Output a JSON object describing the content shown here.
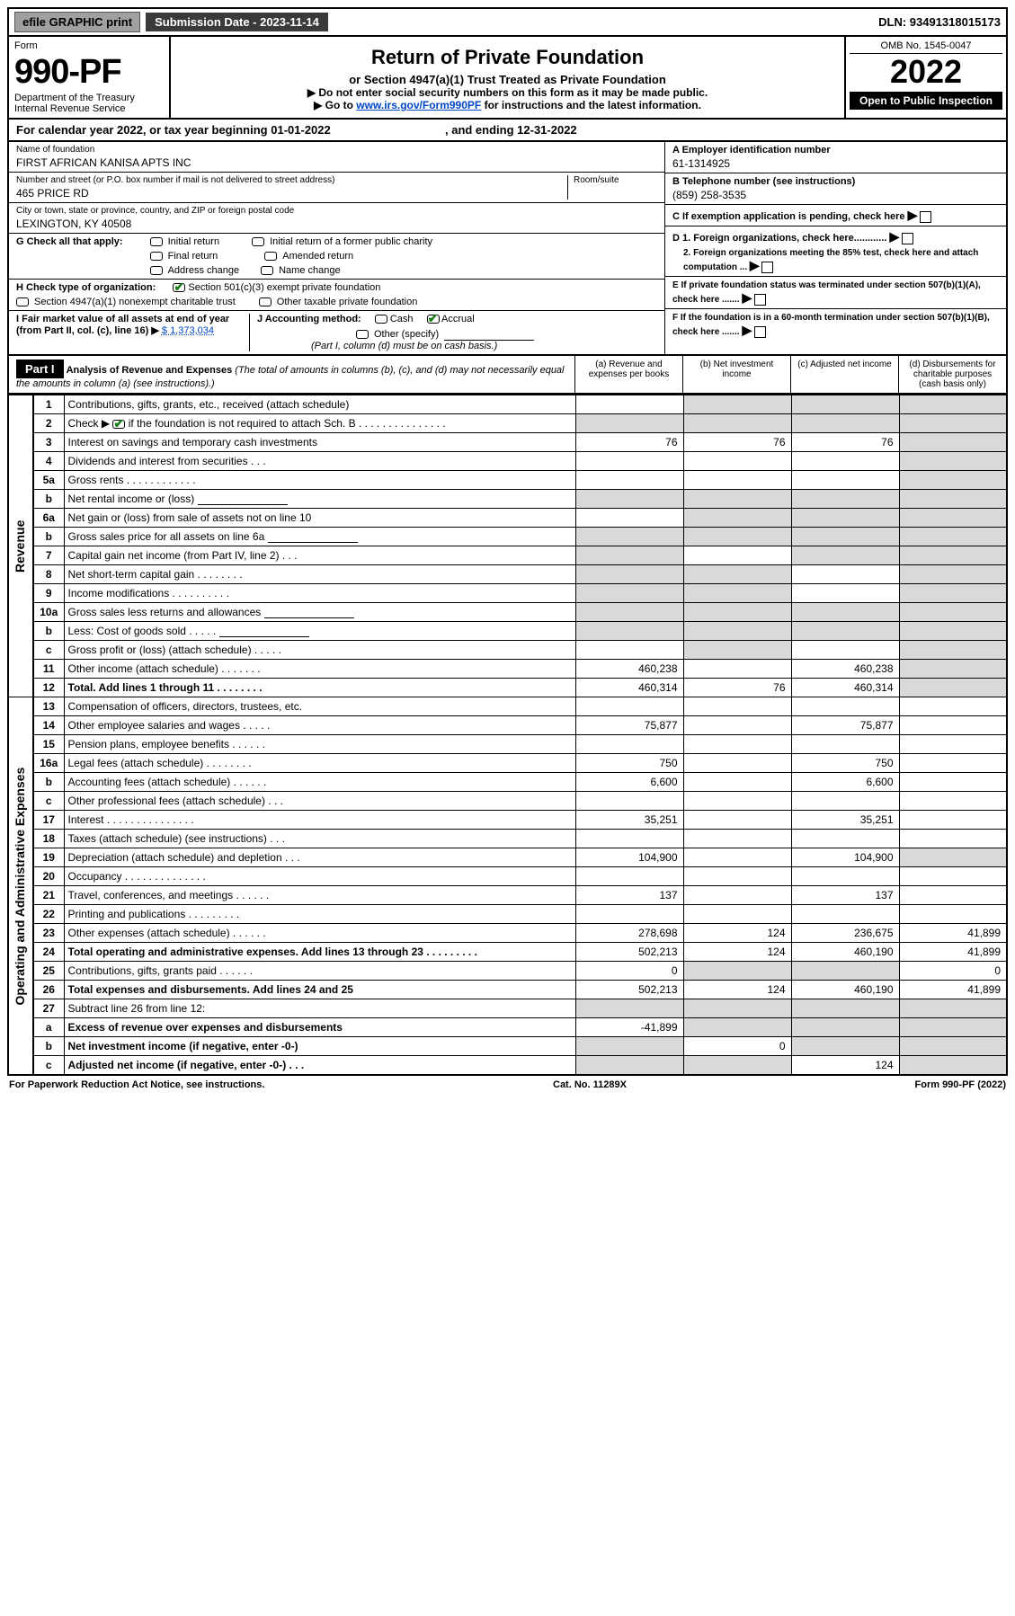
{
  "topbar": {
    "efile": "efile GRAPHIC print",
    "sub_label": "Submission Date - 2023-11-14",
    "dln": "DLN: 93491318015173"
  },
  "header": {
    "form_label": "Form",
    "form_no": "990-PF",
    "dept": "Department of the Treasury",
    "irs": "Internal Revenue Service",
    "title": "Return of Private Foundation",
    "subtitle1": "or Section 4947(a)(1) Trust Treated as Private Foundation",
    "subtitle2a": "▶ Do not enter social security numbers on this form as it may be made public.",
    "subtitle2b_pre": "▶ Go to ",
    "subtitle2b_link": "www.irs.gov/Form990PF",
    "subtitle2b_post": " for instructions and the latest information.",
    "omb": "OMB No. 1545-0047",
    "year": "2022",
    "open": "Open to Public Inspection"
  },
  "calendar": {
    "text_a": "For calendar year 2022, or tax year beginning ",
    "begin": "01-01-2022",
    "text_b": " , and ending ",
    "end": "12-31-2022"
  },
  "info": {
    "name_lbl": "Name of foundation",
    "name": "FIRST AFRICAN KANISA APTS INC",
    "addr_lbl": "Number and street (or P.O. box number if mail is not delivered to street address)",
    "addr": "465 PRICE RD",
    "room_lbl": "Room/suite",
    "city_lbl": "City or town, state or province, country, and ZIP or foreign postal code",
    "city": "LEXINGTON, KY  40508",
    "a_lbl": "A Employer identification number",
    "ein": "61-1314925",
    "b_lbl": "B Telephone number (see instructions)",
    "phone": "(859) 258-3535",
    "c_lbl": "C If exemption application is pending, check here",
    "g_lbl": "G Check all that apply:",
    "g1": "Initial return",
    "g2": "Initial return of a former public charity",
    "g3": "Final return",
    "g4": "Amended return",
    "g5": "Address change",
    "g6": "Name change",
    "d1_lbl": "D 1. Foreign organizations, check here............",
    "d2_lbl": "2. Foreign organizations meeting the 85% test, check here and attach computation ...",
    "h_lbl": "H Check type of organization:",
    "h1": "Section 501(c)(3) exempt private foundation",
    "h2": "Section 4947(a)(1) nonexempt charitable trust",
    "h3": "Other taxable private foundation",
    "e_lbl": "E  If private foundation status was terminated under section 507(b)(1)(A), check here .......",
    "i_lbl": "I Fair market value of all assets at end of year (from Part II, col. (c), line 16) ▶",
    "i_val": "$  1,373,034",
    "j_lbl": "J Accounting method:",
    "j1": "Cash",
    "j2": "Accrual",
    "j3": "Other (specify)",
    "j_note": "(Part I, column (d) must be on cash basis.)",
    "f_lbl": "F  If the foundation is in a 60-month termination under section 507(b)(1)(B), check here ......."
  },
  "part1": {
    "label": "Part I",
    "title": "Analysis of Revenue and Expenses",
    "title_note": " (The total of amounts in columns (b), (c), and (d) may not necessarily equal the amounts in column (a) (see instructions).)",
    "col_a": "(a)  Revenue and expenses per books",
    "col_b": "(b)  Net investment income",
    "col_c": "(c)  Adjusted net income",
    "col_d": "(d)  Disbursements for charitable purposes (cash basis only)"
  },
  "sides": {
    "rev": "Revenue",
    "exp": "Operating and Administrative Expenses"
  },
  "rows": [
    {
      "n": "1",
      "t": "Contributions, gifts, grants, etc., received (attach schedule)",
      "a": "",
      "b": "s",
      "c": "s",
      "d": "s"
    },
    {
      "n": "2",
      "t": "Check ▶ ☑ if the foundation is not required to attach Sch. B  .  .  .  .  .  .  .  .  .  .  .  .  .  .  .",
      "a": "s",
      "b": "s",
      "c": "s",
      "d": "s"
    },
    {
      "n": "3",
      "t": "Interest on savings and temporary cash investments",
      "a": "76",
      "b": "76",
      "c": "76",
      "d": "s"
    },
    {
      "n": "4",
      "t": "Dividends and interest from securities  .  .  .",
      "a": "",
      "b": "",
      "c": "",
      "d": "s"
    },
    {
      "n": "5a",
      "t": "Gross rents  .  .  .  .  .  .  .  .  .  .  .  .",
      "a": "",
      "b": "",
      "c": "",
      "d": "s"
    },
    {
      "n": "b",
      "t": "Net rental income or (loss)  ",
      "a": "s",
      "b": "s",
      "c": "s",
      "d": "s",
      "box": true
    },
    {
      "n": "6a",
      "t": "Net gain or (loss) from sale of assets not on line 10",
      "a": "",
      "b": "s",
      "c": "s",
      "d": "s"
    },
    {
      "n": "b",
      "t": "Gross sales price for all assets on line 6a",
      "a": "s",
      "b": "s",
      "c": "s",
      "d": "s",
      "box": true
    },
    {
      "n": "7",
      "t": "Capital gain net income (from Part IV, line 2)  .  .  .",
      "a": "s",
      "b": "",
      "c": "s",
      "d": "s"
    },
    {
      "n": "8",
      "t": "Net short-term capital gain  .  .  .  .  .  .  .  .",
      "a": "s",
      "b": "s",
      "c": "",
      "d": "s"
    },
    {
      "n": "9",
      "t": "Income modifications  .  .  .  .  .  .  .  .  .  .",
      "a": "s",
      "b": "s",
      "c": "",
      "d": "s"
    },
    {
      "n": "10a",
      "t": "Gross sales less returns and allowances",
      "a": "s",
      "b": "s",
      "c": "s",
      "d": "s",
      "box": true
    },
    {
      "n": "b",
      "t": "Less: Cost of goods sold  .  .  .  .  .",
      "a": "s",
      "b": "s",
      "c": "s",
      "d": "s",
      "box": true
    },
    {
      "n": "c",
      "t": "Gross profit or (loss) (attach schedule)  .  .  .  .  .",
      "a": "",
      "b": "s",
      "c": "",
      "d": "s"
    },
    {
      "n": "11",
      "t": "Other income (attach schedule)  .  .  .  .  .  .  .",
      "a": "460,238",
      "b": "",
      "c": "460,238",
      "d": "s"
    },
    {
      "n": "12",
      "t": "Total. Add lines 1 through 11  .  .  .  .  .  .  .  .",
      "a": "460,314",
      "b": "76",
      "c": "460,314",
      "d": "s",
      "bold": true
    }
  ],
  "exp_rows": [
    {
      "n": "13",
      "t": "Compensation of officers, directors, trustees, etc.",
      "a": "",
      "b": "",
      "c": "",
      "d": ""
    },
    {
      "n": "14",
      "t": "Other employee salaries and wages  .  .  .  .  .",
      "a": "75,877",
      "b": "",
      "c": "75,877",
      "d": ""
    },
    {
      "n": "15",
      "t": "Pension plans, employee benefits  .  .  .  .  .  .",
      "a": "",
      "b": "",
      "c": "",
      "d": ""
    },
    {
      "n": "16a",
      "t": "Legal fees (attach schedule)  .  .  .  .  .  .  .  .",
      "a": "750",
      "b": "",
      "c": "750",
      "d": ""
    },
    {
      "n": "b",
      "t": "Accounting fees (attach schedule)  .  .  .  .  .  .",
      "a": "6,600",
      "b": "",
      "c": "6,600",
      "d": ""
    },
    {
      "n": "c",
      "t": "Other professional fees (attach schedule)  .  .  .",
      "a": "",
      "b": "",
      "c": "",
      "d": ""
    },
    {
      "n": "17",
      "t": "Interest  .  .  .  .  .  .  .  .  .  .  .  .  .  .  .",
      "a": "35,251",
      "b": "",
      "c": "35,251",
      "d": ""
    },
    {
      "n": "18",
      "t": "Taxes (attach schedule) (see instructions)  .  .  .",
      "a": "",
      "b": "",
      "c": "",
      "d": ""
    },
    {
      "n": "19",
      "t": "Depreciation (attach schedule) and depletion  .  .  .",
      "a": "104,900",
      "b": "",
      "c": "104,900",
      "d": "s"
    },
    {
      "n": "20",
      "t": "Occupancy  .  .  .  .  .  .  .  .  .  .  .  .  .  .",
      "a": "",
      "b": "",
      "c": "",
      "d": ""
    },
    {
      "n": "21",
      "t": "Travel, conferences, and meetings  .  .  .  .  .  .",
      "a": "137",
      "b": "",
      "c": "137",
      "d": ""
    },
    {
      "n": "22",
      "t": "Printing and publications  .  .  .  .  .  .  .  .  .",
      "a": "",
      "b": "",
      "c": "",
      "d": ""
    },
    {
      "n": "23",
      "t": "Other expenses (attach schedule)  .  .  .  .  .  .",
      "a": "278,698",
      "b": "124",
      "c": "236,675",
      "d": "41,899"
    },
    {
      "n": "24",
      "t": "Total operating and administrative expenses. Add lines 13 through 23  .  .  .  .  .  .  .  .  .",
      "a": "502,213",
      "b": "124",
      "c": "460,190",
      "d": "41,899",
      "bold": true
    },
    {
      "n": "25",
      "t": "Contributions, gifts, grants paid  .  .  .  .  .  .",
      "a": "0",
      "b": "s",
      "c": "s",
      "d": "0"
    },
    {
      "n": "26",
      "t": "Total expenses and disbursements. Add lines 24 and 25",
      "a": "502,213",
      "b": "124",
      "c": "460,190",
      "d": "41,899",
      "bold": true
    }
  ],
  "tail_rows": [
    {
      "n": "27",
      "t": "Subtract line 26 from line 12:",
      "a": "s",
      "b": "s",
      "c": "s",
      "d": "s",
      "bold": false
    },
    {
      "n": "a",
      "t": "Excess of revenue over expenses and disbursements",
      "a": "-41,899",
      "b": "s",
      "c": "s",
      "d": "s",
      "bold": true
    },
    {
      "n": "b",
      "t": "Net investment income (if negative, enter -0-)",
      "a": "s",
      "b": "0",
      "c": "s",
      "d": "s",
      "bold": true
    },
    {
      "n": "c",
      "t": "Adjusted net income (if negative, enter -0-)  .  .  .",
      "a": "s",
      "b": "s",
      "c": "124",
      "d": "s",
      "bold": true
    }
  ],
  "footer": {
    "left": "For Paperwork Reduction Act Notice, see instructions.",
    "mid": "Cat. No. 11289X",
    "right": "Form 990-PF (2022)"
  },
  "colors": {
    "link": "#0046c8",
    "check_green": "#1a7f1a",
    "shade": "#d9d9d9",
    "topbar_btn": "#9fa0a0",
    "topbar_sub": "#3a3a3a"
  }
}
